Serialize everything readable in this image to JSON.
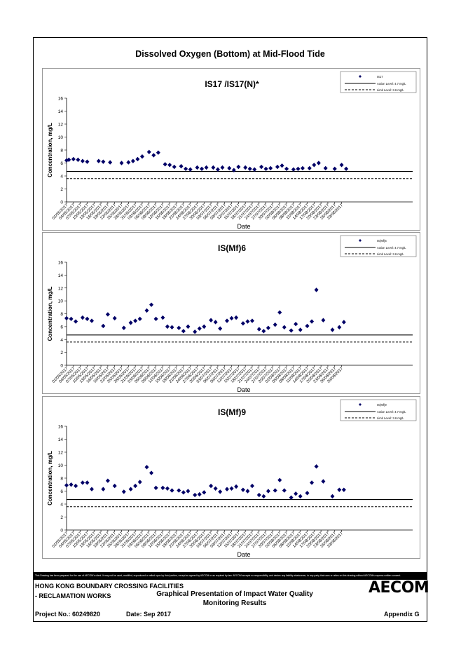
{
  "figure_title": "Dissolved Oxygen (Bottom) at Mid-Flood Tide",
  "axis": {
    "xlabel": "Date",
    "ylabel": "Concentration, mg/L"
  },
  "legend": {
    "action": "Action Level: 4.7 mg/L",
    "limit": "Limit Level: 3.6 mg/L"
  },
  "chart_data": [
    {
      "type": "scatter",
      "title": "IS17 /IS17(N)*",
      "legend_series": "IS17",
      "ylim": [
        0,
        16
      ],
      "yticks": [
        0,
        2,
        4,
        6,
        8,
        10,
        12,
        14,
        16
      ],
      "xlim": [
        "01/05/2017",
        "29/09/2017"
      ],
      "xticks": [
        "01/05/2017",
        "04/05/2017",
        "07/05/2017",
        "10/05/2017",
        "13/05/2017",
        "16/05/2017",
        "19/05/2017",
        "22/05/2017",
        "25/05/2017",
        "28/05/2017",
        "31/05/2017",
        "03/06/2017",
        "06/06/2017",
        "09/06/2017",
        "12/06/2017",
        "15/06/2017",
        "18/06/2017",
        "21/06/2017",
        "24/06/2017",
        "27/06/2017",
        "30/06/2017",
        "03/07/2017",
        "06/07/2017",
        "09/07/2017",
        "12/07/2017",
        "15/07/2017",
        "18/07/2017",
        "21/07/2017",
        "24/07/2017",
        "27/07/2017",
        "30/07/2017",
        "02/08/2017",
        "05/08/2017",
        "08/08/2017",
        "11/08/2017",
        "14/08/2017",
        "17/08/2017",
        "20/08/2017",
        "23/08/2017",
        "26/08/2017",
        "29/08/2017"
      ],
      "action_level": 4.7,
      "limit_level": 3.6,
      "points": [
        [
          "01/05/2017",
          6.4
        ],
        [
          "02/05/2017",
          6.5
        ],
        [
          "04/05/2017",
          6.6
        ],
        [
          "06/05/2017",
          6.5
        ],
        [
          "08/05/2017",
          6.3
        ],
        [
          "10/05/2017",
          6.2
        ],
        [
          "15/05/2017",
          6.3
        ],
        [
          "17/05/2017",
          6.2
        ],
        [
          "20/05/2017",
          6.1
        ],
        [
          "25/05/2017",
          6.0
        ],
        [
          "28/05/2017",
          6.1
        ],
        [
          "30/05/2017",
          6.3
        ],
        [
          "01/06/2017",
          6.6
        ],
        [
          "03/06/2017",
          7.0
        ],
        [
          "06/06/2017",
          7.7
        ],
        [
          "08/06/2017",
          7.2
        ],
        [
          "10/06/2017",
          7.6
        ],
        [
          "13/06/2017",
          5.8
        ],
        [
          "15/06/2017",
          5.7
        ],
        [
          "17/06/2017",
          5.4
        ],
        [
          "20/06/2017",
          5.5
        ],
        [
          "22/06/2017",
          5.1
        ],
        [
          "24/06/2017",
          5.0
        ],
        [
          "27/06/2017",
          5.3
        ],
        [
          "29/06/2017",
          5.1
        ],
        [
          "01/07/2017",
          5.3
        ],
        [
          "04/07/2017",
          5.3
        ],
        [
          "06/07/2017",
          5.0
        ],
        [
          "08/07/2017",
          5.3
        ],
        [
          "11/07/2017",
          5.2
        ],
        [
          "13/07/2017",
          4.9
        ],
        [
          "15/07/2017",
          5.4
        ],
        [
          "18/07/2017",
          5.3
        ],
        [
          "20/07/2017",
          5.1
        ],
        [
          "22/07/2017",
          5.0
        ],
        [
          "25/07/2017",
          5.4
        ],
        [
          "27/07/2017",
          5.1
        ],
        [
          "29/07/2017",
          5.2
        ],
        [
          "01/08/2017",
          5.4
        ],
        [
          "03/08/2017",
          5.6
        ],
        [
          "05/08/2017",
          5.1
        ],
        [
          "08/08/2017",
          5.0
        ],
        [
          "10/08/2017",
          5.1
        ],
        [
          "12/08/2017",
          5.2
        ],
        [
          "15/08/2017",
          5.2
        ],
        [
          "17/08/2017",
          5.7
        ],
        [
          "19/08/2017",
          6.0
        ],
        [
          "22/08/2017",
          5.2
        ],
        [
          "26/08/2017",
          5.1
        ],
        [
          "29/08/2017",
          5.7
        ],
        [
          "31/08/2017",
          5.1
        ]
      ]
    },
    {
      "type": "scatter",
      "title": "IS(Mf)6",
      "legend_series": "IS(Mf)6",
      "ylim": [
        0,
        16
      ],
      "yticks": [
        0,
        2,
        4,
        6,
        8,
        10,
        12,
        14,
        16
      ],
      "xlim": [
        "01/05/2017",
        "29/09/2017"
      ],
      "xticks": [
        "01/05/2017",
        "04/05/2017",
        "07/05/2017",
        "10/05/2017",
        "13/05/2017",
        "16/05/2017",
        "19/05/2017",
        "22/05/2017",
        "25/05/2017",
        "28/05/2017",
        "31/05/2017",
        "03/06/2017",
        "06/06/2017",
        "09/06/2017",
        "12/06/2017",
        "15/06/2017",
        "18/06/2017",
        "21/06/2017",
        "24/06/2017",
        "27/06/2017",
        "30/06/2017",
        "03/07/2017",
        "06/07/2017",
        "09/07/2017",
        "12/07/2017",
        "15/07/2017",
        "18/07/2017",
        "21/07/2017",
        "24/07/2017",
        "27/07/2017",
        "30/07/2017",
        "02/08/2017",
        "05/08/2017",
        "08/08/2017",
        "11/08/2017",
        "14/08/2017",
        "17/08/2017",
        "20/08/2017",
        "23/08/2017",
        "26/08/2017",
        "29/08/2017"
      ],
      "action_level": 4.7,
      "limit_level": 3.6,
      "points": [
        [
          "01/05/2017",
          7.3
        ],
        [
          "03/05/2017",
          7.2
        ],
        [
          "05/05/2017",
          6.8
        ],
        [
          "08/05/2017",
          7.4
        ],
        [
          "10/05/2017",
          7.2
        ],
        [
          "12/05/2017",
          6.9
        ],
        [
          "17/05/2017",
          6.1
        ],
        [
          "19/05/2017",
          7.9
        ],
        [
          "22/05/2017",
          7.3
        ],
        [
          "26/05/2017",
          5.8
        ],
        [
          "29/05/2017",
          6.6
        ],
        [
          "31/05/2017",
          6.9
        ],
        [
          "02/06/2017",
          7.2
        ],
        [
          "05/06/2017",
          8.5
        ],
        [
          "07/06/2017",
          9.4
        ],
        [
          "09/06/2017",
          7.2
        ],
        [
          "12/06/2017",
          7.4
        ],
        [
          "14/06/2017",
          6.0
        ],
        [
          "16/06/2017",
          5.9
        ],
        [
          "19/06/2017",
          5.8
        ],
        [
          "21/06/2017",
          5.3
        ],
        [
          "23/06/2017",
          6.0
        ],
        [
          "26/06/2017",
          5.2
        ],
        [
          "28/06/2017",
          5.7
        ],
        [
          "30/06/2017",
          6.0
        ],
        [
          "03/07/2017",
          7.0
        ],
        [
          "05/07/2017",
          6.7
        ],
        [
          "07/07/2017",
          5.7
        ],
        [
          "10/07/2017",
          6.9
        ],
        [
          "12/07/2017",
          7.3
        ],
        [
          "14/07/2017",
          7.4
        ],
        [
          "17/07/2017",
          6.5
        ],
        [
          "19/07/2017",
          6.8
        ],
        [
          "21/07/2017",
          6.9
        ],
        [
          "24/07/2017",
          5.6
        ],
        [
          "26/07/2017",
          5.3
        ],
        [
          "28/07/2017",
          5.8
        ],
        [
          "31/07/2017",
          6.3
        ],
        [
          "02/08/2017",
          8.2
        ],
        [
          "04/08/2017",
          5.9
        ],
        [
          "07/08/2017",
          5.4
        ],
        [
          "09/08/2017",
          6.4
        ],
        [
          "11/08/2017",
          5.5
        ],
        [
          "14/08/2017",
          6.1
        ],
        [
          "16/08/2017",
          6.8
        ],
        [
          "18/08/2017",
          11.7
        ],
        [
          "21/08/2017",
          7.0
        ],
        [
          "25/08/2017",
          5.5
        ],
        [
          "28/08/2017",
          5.9
        ],
        [
          "30/08/2017",
          6.7
        ]
      ]
    },
    {
      "type": "scatter",
      "title": "IS(Mf)9",
      "legend_series": "IS(Mf)9",
      "ylim": [
        0,
        16
      ],
      "yticks": [
        0,
        2,
        4,
        6,
        8,
        10,
        12,
        14,
        16
      ],
      "xlim": [
        "01/05/2017",
        "29/09/2017"
      ],
      "xticks": [
        "01/05/2017",
        "04/05/2017",
        "07/05/2017",
        "10/05/2017",
        "13/05/2017",
        "16/05/2017",
        "19/05/2017",
        "22/05/2017",
        "25/05/2017",
        "28/05/2017",
        "31/05/2017",
        "03/06/2017",
        "06/06/2017",
        "09/06/2017",
        "12/06/2017",
        "15/06/2017",
        "18/06/2017",
        "21/06/2017",
        "24/06/2017",
        "27/06/2017",
        "30/06/2017",
        "03/07/2017",
        "06/07/2017",
        "09/07/2017",
        "12/07/2017",
        "15/07/2017",
        "18/07/2017",
        "21/07/2017",
        "24/07/2017",
        "27/07/2017",
        "30/07/2017",
        "02/08/2017",
        "05/08/2017",
        "08/08/2017",
        "11/08/2017",
        "14/08/2017",
        "17/08/2017",
        "20/08/2017",
        "23/08/2017",
        "26/08/2017",
        "29/08/2017"
      ],
      "action_level": 4.7,
      "limit_level": 3.6,
      "points": [
        [
          "01/05/2017",
          6.9
        ],
        [
          "03/05/2017",
          7.0
        ],
        [
          "05/05/2017",
          6.8
        ],
        [
          "08/05/2017",
          7.3
        ],
        [
          "10/05/2017",
          7.3
        ],
        [
          "12/05/2017",
          6.3
        ],
        [
          "17/05/2017",
          6.3
        ],
        [
          "19/05/2017",
          7.6
        ],
        [
          "22/05/2017",
          6.8
        ],
        [
          "26/05/2017",
          5.9
        ],
        [
          "29/05/2017",
          6.3
        ],
        [
          "31/05/2017",
          6.8
        ],
        [
          "02/06/2017",
          7.4
        ],
        [
          "05/06/2017",
          9.7
        ],
        [
          "07/06/2017",
          8.8
        ],
        [
          "09/06/2017",
          6.5
        ],
        [
          "12/06/2017",
          6.5
        ],
        [
          "14/06/2017",
          6.4
        ],
        [
          "16/06/2017",
          6.1
        ],
        [
          "19/06/2017",
          6.1
        ],
        [
          "21/06/2017",
          5.8
        ],
        [
          "23/06/2017",
          6.0
        ],
        [
          "26/06/2017",
          5.4
        ],
        [
          "28/06/2017",
          5.5
        ],
        [
          "30/06/2017",
          5.8
        ],
        [
          "03/07/2017",
          6.8
        ],
        [
          "05/07/2017",
          6.4
        ],
        [
          "07/07/2017",
          5.9
        ],
        [
          "10/07/2017",
          6.3
        ],
        [
          "12/07/2017",
          6.4
        ],
        [
          "14/07/2017",
          6.7
        ],
        [
          "17/07/2017",
          6.2
        ],
        [
          "19/07/2017",
          6.0
        ],
        [
          "21/07/2017",
          6.8
        ],
        [
          "24/07/2017",
          5.4
        ],
        [
          "26/07/2017",
          5.2
        ],
        [
          "28/07/2017",
          6.0
        ],
        [
          "31/07/2017",
          6.1
        ],
        [
          "02/08/2017",
          7.7
        ],
        [
          "04/08/2017",
          6.1
        ],
        [
          "07/08/2017",
          5.0
        ],
        [
          "09/08/2017",
          5.6
        ],
        [
          "11/08/2017",
          5.2
        ],
        [
          "14/08/2017",
          5.7
        ],
        [
          "16/08/2017",
          7.3
        ],
        [
          "18/08/2017",
          9.8
        ],
        [
          "21/08/2017",
          7.5
        ],
        [
          "25/08/2017",
          5.2
        ],
        [
          "28/08/2017",
          6.2
        ],
        [
          "30/08/2017",
          6.2
        ]
      ]
    }
  ],
  "footer": {
    "disclaimer": "This Drawing has been prepared for the use of AECOM's client. It may not be used, modified, reproduced or relied upon by third parties, except as agreed by AECOM or as required by law. AECOM accepts no responsibility, and denies any liability whatsoever, to any party that uses or relies on this drawing without AECOM's express written consent.",
    "project_line1": "HONG KONG BOUNDARY CROSSING FACILITIES",
    "project_line2": "- RECLAMATION WORKS",
    "title_line1": "Graphical Presentation of Impact Water Quality",
    "title_line2": "Monitoring Results",
    "project_no": "Project No.: 60249820",
    "date": "Date: Sep 2017",
    "appendix": "Appendix G",
    "logo": "AECOM"
  }
}
